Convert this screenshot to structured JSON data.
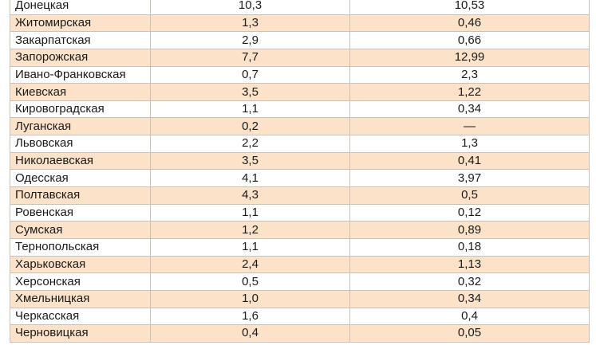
{
  "table": {
    "rows": [
      [
        "Донецкая",
        "10,3",
        "10,53"
      ],
      [
        "Житомирская",
        "1,3",
        "0,46"
      ],
      [
        "Закарпатская",
        "2,9",
        "0,66"
      ],
      [
        "Запорожская",
        "7,7",
        "12,99"
      ],
      [
        "Ивано-Франковская",
        "0,7",
        "2,3"
      ],
      [
        "Киевская",
        "3,5",
        "1,22"
      ],
      [
        "Кировоградская",
        "1,1",
        "0,34"
      ],
      [
        "Луганская",
        "0,2",
        "—"
      ],
      [
        "Львовская",
        "2,2",
        "1,3"
      ],
      [
        "Николаевская",
        "3,5",
        "0,41"
      ],
      [
        "Одесская",
        "4,1",
        "3,97"
      ],
      [
        "Полтавская",
        "4,3",
        "0,5"
      ],
      [
        "Ровенская",
        "1,1",
        "0,12"
      ],
      [
        "Сумская",
        "1,2",
        "0,89"
      ],
      [
        "Тернопольская",
        "1,1",
        "0,18"
      ],
      [
        "Харьковская",
        "2,4",
        "1,13"
      ],
      [
        "Херсонская",
        "0,5",
        "0,32"
      ],
      [
        "Хмельницкая",
        "1,0",
        "0,34"
      ],
      [
        "Черкасская",
        "1,6",
        "0,4"
      ],
      [
        "Черновицкая",
        "0,4",
        "0,05"
      ]
    ]
  }
}
